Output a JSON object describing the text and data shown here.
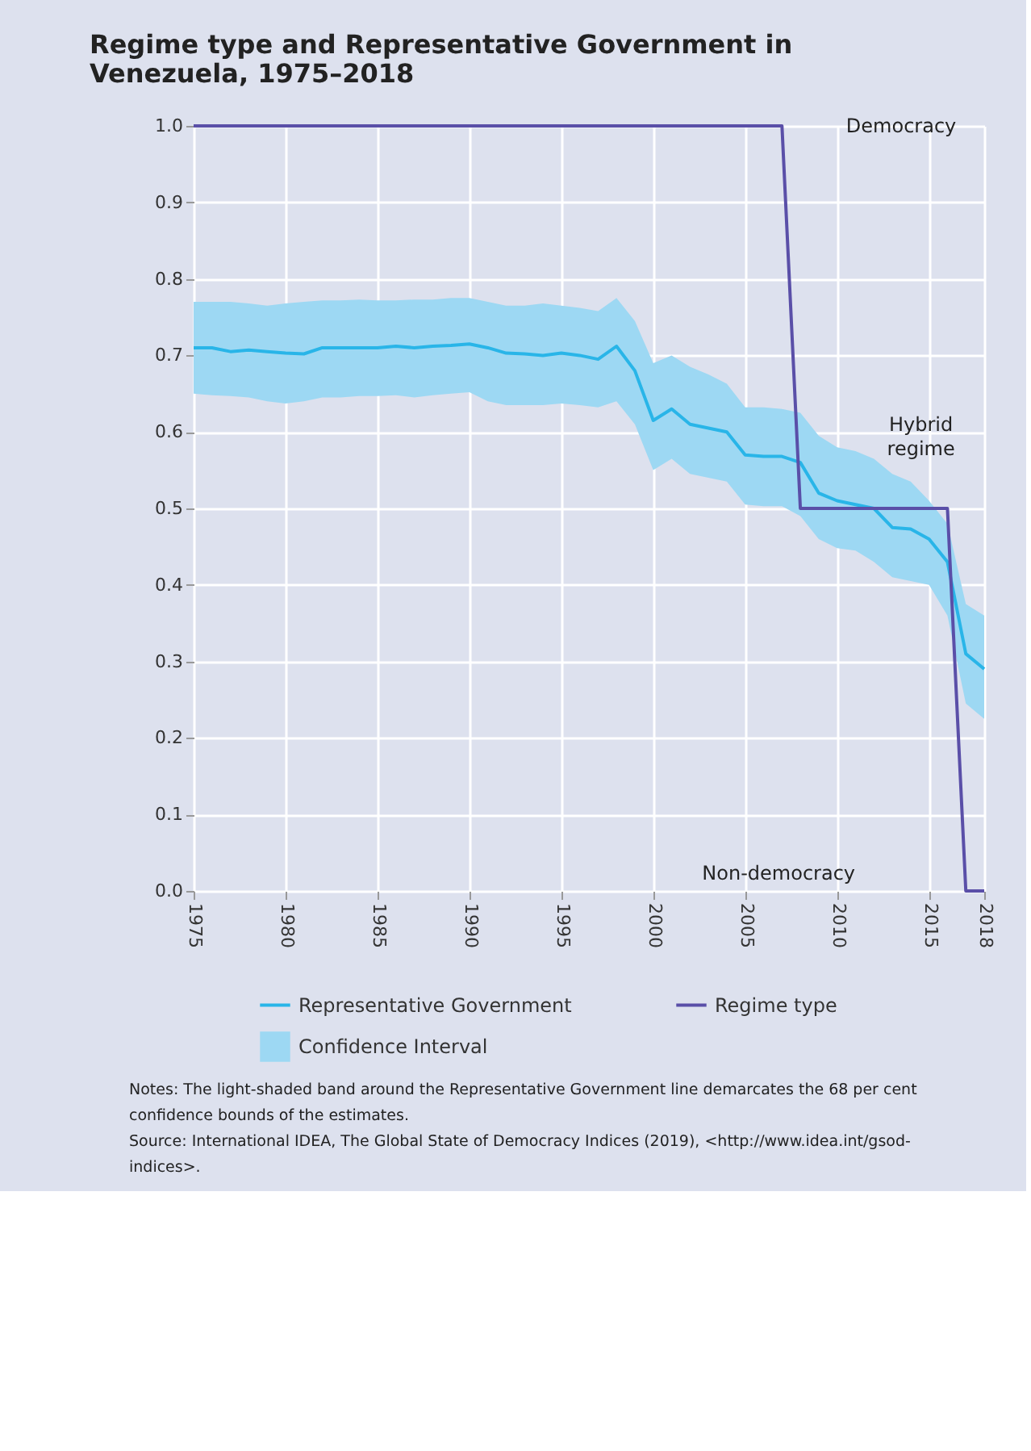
{
  "chart_data": {
    "type": "line",
    "title": "Regime type and Representative Government in Venezuela, 1975–2018",
    "x": [
      1975,
      1976,
      1977,
      1978,
      1979,
      1980,
      1981,
      1982,
      1983,
      1984,
      1985,
      1986,
      1987,
      1988,
      1989,
      1990,
      1991,
      1992,
      1993,
      1994,
      1995,
      1996,
      1997,
      1998,
      1999,
      2000,
      2001,
      2002,
      2003,
      2004,
      2005,
      2006,
      2007,
      2008,
      2009,
      2010,
      2011,
      2012,
      2013,
      2014,
      2015,
      2016,
      2017,
      2018
    ],
    "series": [
      {
        "name": "Representative Government",
        "color": "#29b5e8",
        "values": [
          0.71,
          0.71,
          0.705,
          0.707,
          0.705,
          0.703,
          0.702,
          0.71,
          0.71,
          0.71,
          0.71,
          0.712,
          0.71,
          0.712,
          0.713,
          0.715,
          0.71,
          0.703,
          0.702,
          0.7,
          0.703,
          0.7,
          0.695,
          0.712,
          0.68,
          0.615,
          0.63,
          0.61,
          0.605,
          0.6,
          0.57,
          0.568,
          0.568,
          0.56,
          0.52,
          0.51,
          0.505,
          0.5,
          0.475,
          0.473,
          0.46,
          0.43,
          0.31,
          0.29
        ]
      },
      {
        "name": "Confidence Interval",
        "type": "area",
        "color": "#9dd8f3",
        "values": [
          null,
          null,
          null,
          null,
          null,
          null,
          null,
          null,
          null,
          null,
          null,
          null,
          null,
          null,
          null,
          null,
          null,
          null,
          null,
          null,
          null,
          null,
          null,
          null,
          null,
          null,
          null,
          null,
          null,
          null,
          null,
          null,
          null,
          null,
          null,
          null,
          null,
          null,
          null,
          null,
          null,
          null,
          null,
          null
        ],
        "lower": [
          0.65,
          0.648,
          0.647,
          0.645,
          0.64,
          0.637,
          0.64,
          0.645,
          0.645,
          0.647,
          0.647,
          0.648,
          0.645,
          0.648,
          0.65,
          0.652,
          0.64,
          0.635,
          0.635,
          0.635,
          0.637,
          0.635,
          0.632,
          0.64,
          0.61,
          0.55,
          0.565,
          0.545,
          0.54,
          0.535,
          0.505,
          0.503,
          0.503,
          0.49,
          0.46,
          0.448,
          0.445,
          0.43,
          0.41,
          0.405,
          0.4,
          0.36,
          0.245,
          0.225
        ],
        "upper": [
          0.77,
          0.77,
          0.77,
          0.768,
          0.765,
          0.768,
          0.77,
          0.772,
          0.772,
          0.773,
          0.772,
          0.772,
          0.773,
          0.773,
          0.775,
          0.775,
          0.77,
          0.765,
          0.765,
          0.768,
          0.765,
          0.762,
          0.758,
          0.775,
          0.745,
          0.69,
          0.7,
          0.685,
          0.675,
          0.663,
          0.632,
          0.632,
          0.63,
          0.625,
          0.595,
          0.58,
          0.575,
          0.565,
          0.545,
          0.535,
          0.51,
          0.48,
          0.375,
          0.36
        ]
      },
      {
        "name": "Regime type",
        "color": "#5a4fa8",
        "values": [
          1,
          1,
          1,
          1,
          1,
          1,
          1,
          1,
          1,
          1,
          1,
          1,
          1,
          1,
          1,
          1,
          1,
          1,
          1,
          1,
          1,
          1,
          1,
          1,
          1,
          1,
          1,
          1,
          1,
          1,
          1,
          1,
          1,
          0.5,
          0.5,
          0.5,
          0.5,
          0.5,
          0.5,
          0.5,
          0.5,
          0.5,
          0,
          0
        ]
      }
    ],
    "xlim": [
      1975,
      2018
    ],
    "xticks": [
      1975,
      1980,
      1985,
      1990,
      1995,
      2000,
      2005,
      2010,
      2015,
      2018
    ],
    "ylim": [
      0,
      1
    ],
    "yticks": [
      {
        "value": 0,
        "label": "0.0"
      },
      0.1,
      0.2,
      0.3,
      0.4,
      0.5,
      0.6,
      0.7,
      0.8,
      0.9,
      {
        "value": 1,
        "label": "1.0"
      }
    ],
    "grid": true,
    "legend": "bottom",
    "annotations": [
      "Democracy",
      "Hybrid\nregime",
      "Non-democracy",
      "Notes: The light-shaded band around the Representative Government line demarcates the 68 per cent confidence bounds of the estimates.",
      "Source: International IDEA, The Global State of Democracy Indices (2019), <http://www.idea.int/gsod-indices>."
    ]
  }
}
